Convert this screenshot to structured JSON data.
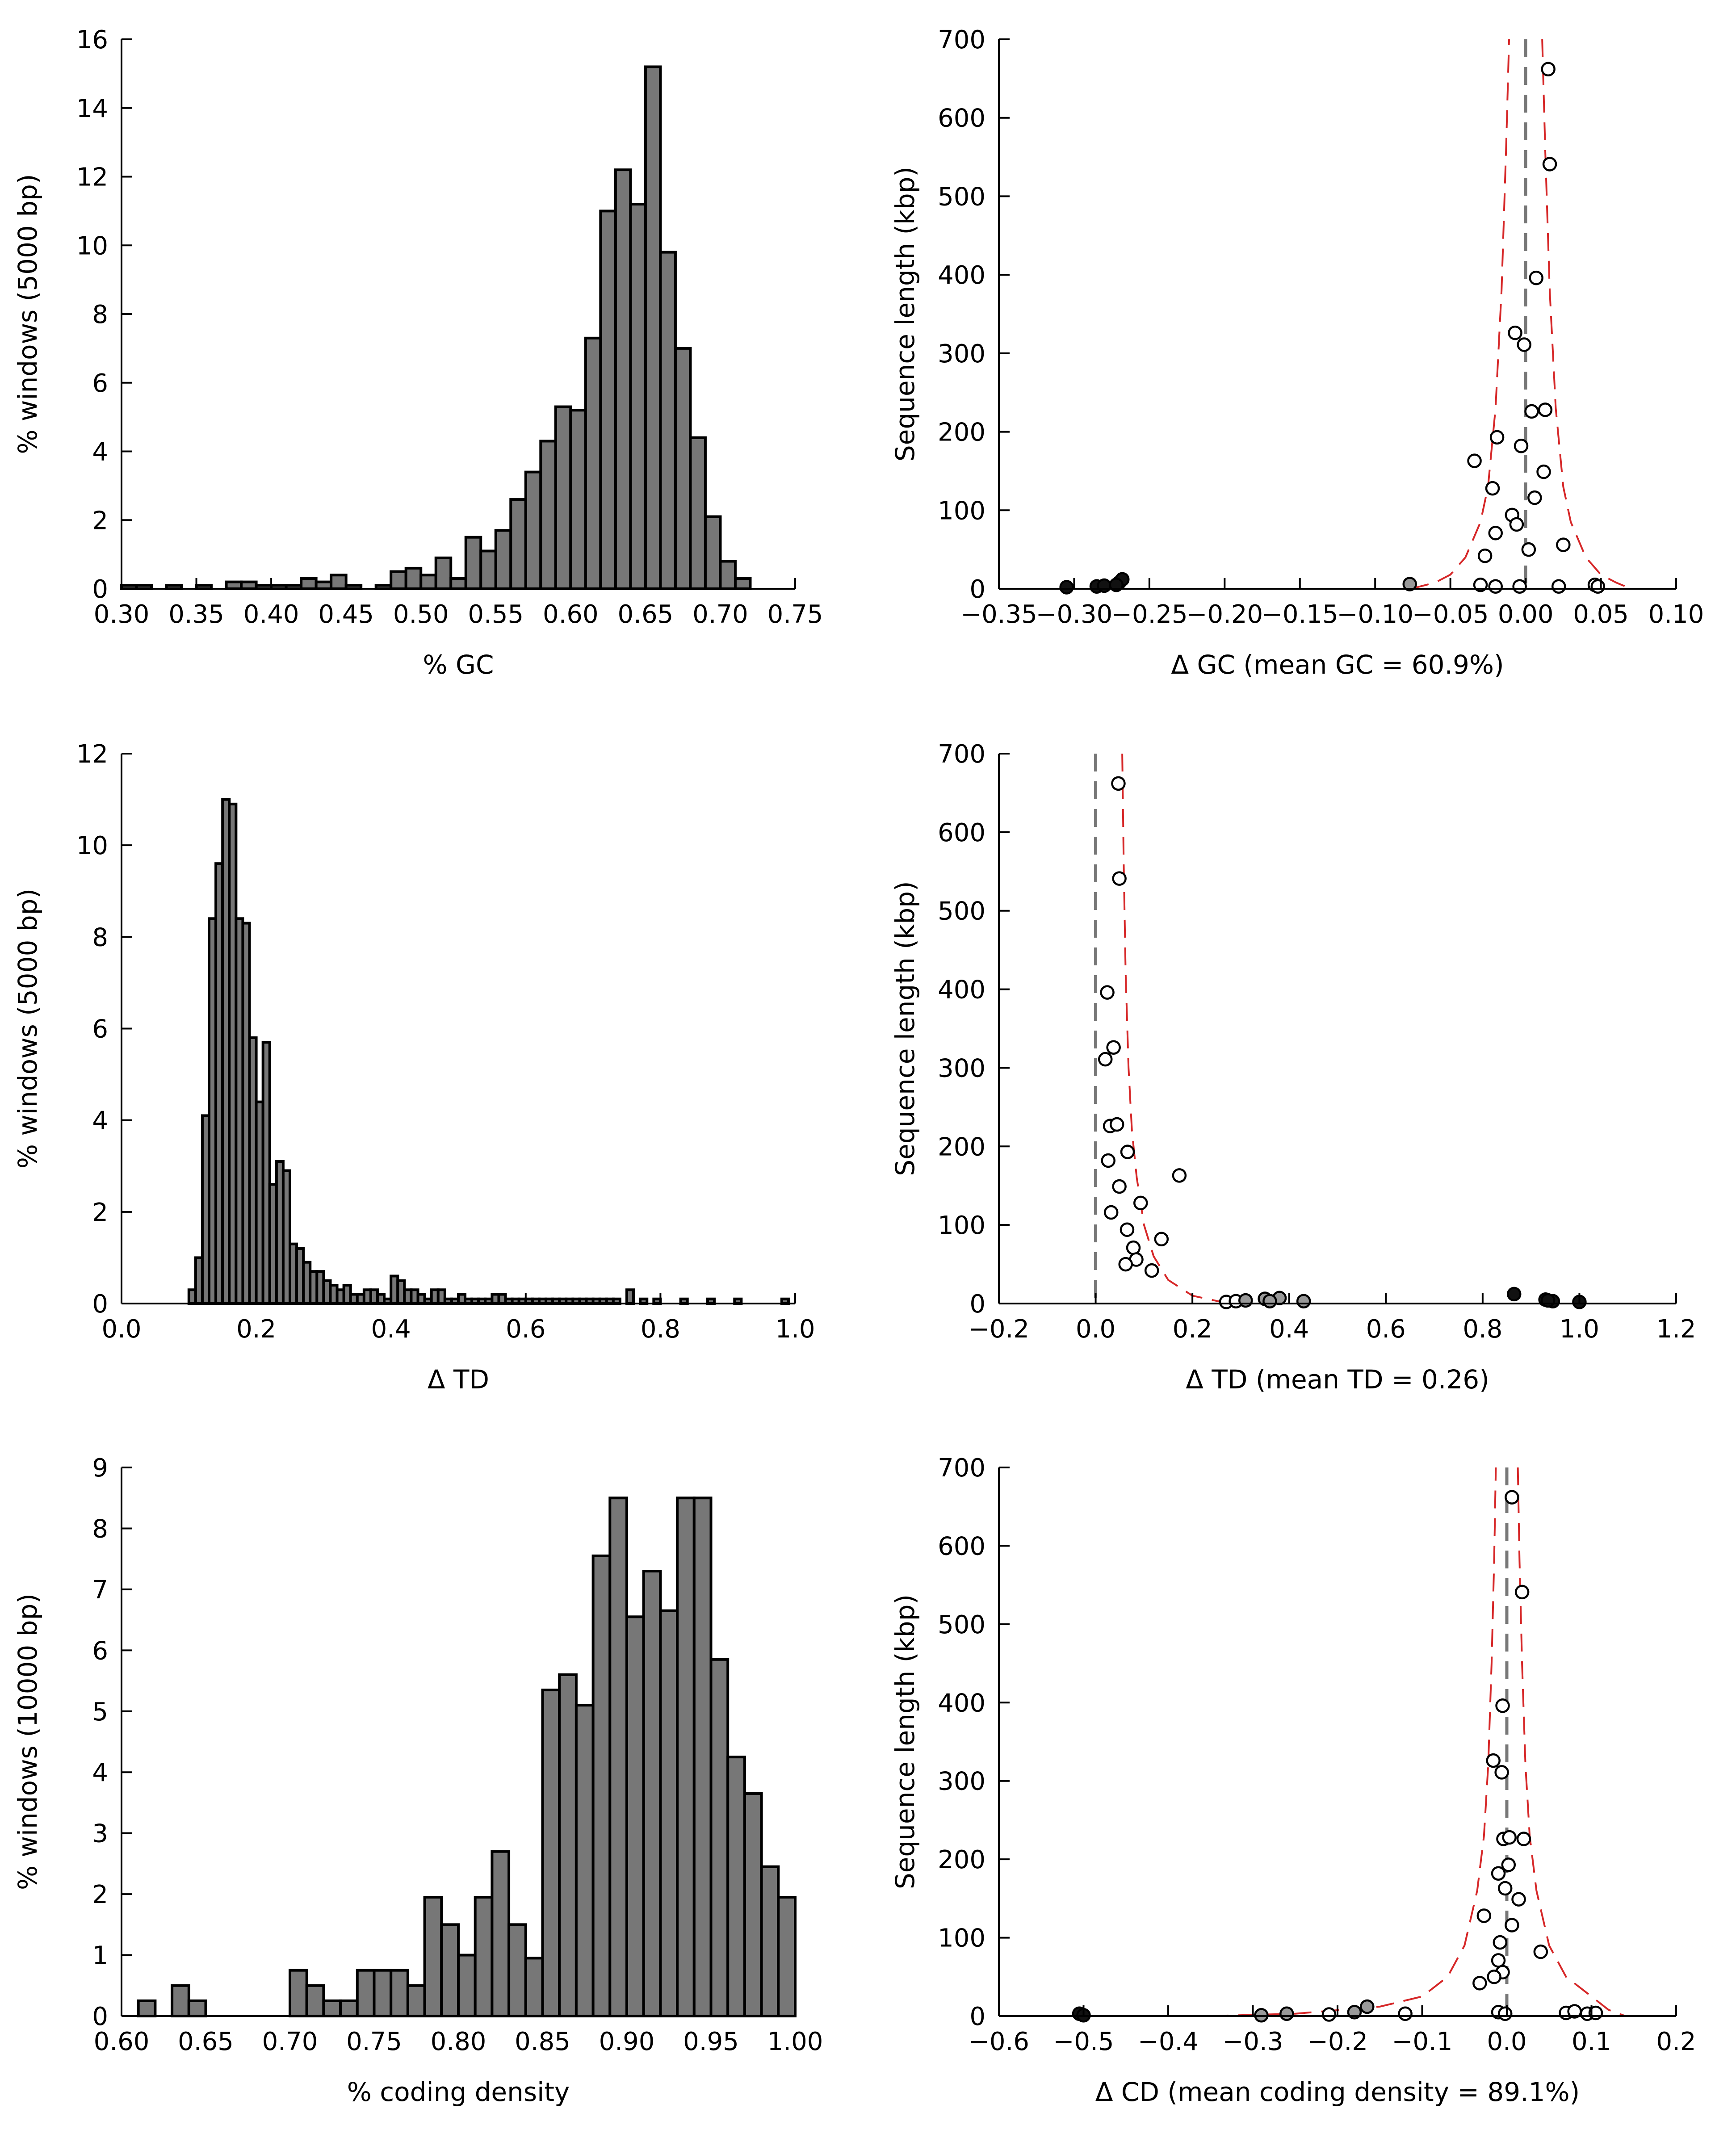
{
  "chart_data": [
    {
      "id": "hist_gc",
      "type": "bar",
      "xlabel": "% GC",
      "ylabel": "% windows (5000 bp)",
      "xlim": [
        0.3,
        0.75
      ],
      "ylim": [
        0,
        16
      ],
      "xticks": [
        "0.30",
        "0.35",
        "0.40",
        "0.45",
        "0.50",
        "0.55",
        "0.60",
        "0.65",
        "0.70",
        "0.75"
      ],
      "yticks": [
        "0",
        "2",
        "4",
        "6",
        "8",
        "10",
        "12",
        "14",
        "16"
      ],
      "bin_start": 0.3,
      "bin_width": 0.01,
      "values": [
        0.1,
        0.1,
        0,
        0.1,
        0,
        0.1,
        0,
        0.2,
        0.2,
        0.1,
        0.1,
        0.1,
        0.3,
        0.2,
        0.4,
        0.1,
        0,
        0.1,
        0.5,
        0.6,
        0.4,
        0.9,
        0.3,
        1.5,
        1.1,
        1.7,
        2.6,
        3.4,
        4.3,
        5.3,
        5.2,
        7.3,
        11.0,
        12.2,
        11.2,
        15.2,
        9.8,
        7.0,
        4.4,
        2.1,
        0.8,
        0.3,
        0,
        0,
        0,
        0
      ],
      "bar_color": "#777777"
    },
    {
      "id": "scatter_gc",
      "type": "scatter",
      "xlabel": "Δ GC (mean GC = 60.9%)",
      "ylabel": "Sequence length (kbp)",
      "xlim": [
        -0.35,
        0.1
      ],
      "ylim": [
        0,
        700
      ],
      "xticks": [
        "−0.35",
        "−0.30",
        "−0.25",
        "−0.20",
        "−0.15",
        "−0.10",
        "−0.05",
        "0.00",
        "0.05",
        "0.10"
      ],
      "yticks": [
        "0",
        "100",
        "200",
        "300",
        "400",
        "500",
        "600",
        "700"
      ],
      "ref_x": 0.0,
      "envelope": [
        {
          "x": -0.076,
          "y": 0
        },
        {
          "x": -0.06,
          "y": 8
        },
        {
          "x": -0.05,
          "y": 18
        },
        {
          "x": -0.04,
          "y": 40
        },
        {
          "x": -0.03,
          "y": 85
        },
        {
          "x": -0.025,
          "y": 130
        },
        {
          "x": -0.02,
          "y": 230
        },
        {
          "x": -0.016,
          "y": 380
        },
        {
          "x": -0.013,
          "y": 560
        },
        {
          "x": -0.011,
          "y": 700
        }
      ],
      "envelope_right": [
        {
          "x": 0.011,
          "y": 700
        },
        {
          "x": 0.013,
          "y": 560
        },
        {
          "x": 0.016,
          "y": 380
        },
        {
          "x": 0.02,
          "y": 230
        },
        {
          "x": 0.025,
          "y": 130
        },
        {
          "x": 0.03,
          "y": 85
        },
        {
          "x": 0.04,
          "y": 40
        },
        {
          "x": 0.05,
          "y": 18
        },
        {
          "x": 0.06,
          "y": 8
        },
        {
          "x": 0.07,
          "y": 0
        }
      ],
      "points_open": [
        {
          "x": 0.015,
          "y": 662
        },
        {
          "x": 0.016,
          "y": 541
        },
        {
          "x": 0.007,
          "y": 396
        },
        {
          "x": -0.007,
          "y": 326
        },
        {
          "x": -0.001,
          "y": 311
        },
        {
          "x": 0.004,
          "y": 226
        },
        {
          "x": 0.013,
          "y": 228
        },
        {
          "x": -0.019,
          "y": 193
        },
        {
          "x": -0.003,
          "y": 182
        },
        {
          "x": -0.034,
          "y": 163
        },
        {
          "x": 0.012,
          "y": 149
        },
        {
          "x": -0.022,
          "y": 128
        },
        {
          "x": 0.006,
          "y": 116
        },
        {
          "x": -0.009,
          "y": 94
        },
        {
          "x": -0.006,
          "y": 82
        },
        {
          "x": -0.02,
          "y": 71
        },
        {
          "x": 0.025,
          "y": 56
        },
        {
          "x": 0.002,
          "y": 50
        },
        {
          "x": -0.027,
          "y": 42
        },
        {
          "x": -0.03,
          "y": 5
        },
        {
          "x": -0.02,
          "y": 3
        },
        {
          "x": -0.004,
          "y": 3
        },
        {
          "x": 0.022,
          "y": 3
        },
        {
          "x": 0.046,
          "y": 5
        },
        {
          "x": 0.048,
          "y": 3
        }
      ],
      "points_gray": [
        {
          "x": -0.077,
          "y": 6
        }
      ],
      "points_filled": [
        {
          "x": -0.305,
          "y": 2
        },
        {
          "x": -0.285,
          "y": 3
        },
        {
          "x": -0.28,
          "y": 4
        },
        {
          "x": -0.27,
          "y": 8
        },
        {
          "x": -0.268,
          "y": 12
        },
        {
          "x": -0.272,
          "y": 5
        }
      ]
    },
    {
      "id": "hist_td",
      "type": "bar",
      "xlabel": "Δ TD",
      "ylabel": "% windows (5000 bp)",
      "xlim": [
        0.0,
        1.0
      ],
      "ylim": [
        0,
        12
      ],
      "xticks": [
        "0.0",
        "0.2",
        "0.4",
        "0.6",
        "0.8",
        "1.0"
      ],
      "yticks": [
        "0",
        "2",
        "4",
        "6",
        "8",
        "10",
        "12"
      ],
      "bin_start": 0.1,
      "bin_width": 0.01,
      "values": [
        0.3,
        1.0,
        4.1,
        8.4,
        9.6,
        11.0,
        10.9,
        8.4,
        8.3,
        5.8,
        4.4,
        5.7,
        2.6,
        3.1,
        2.9,
        1.3,
        1.2,
        0.9,
        0.7,
        0.7,
        0.5,
        0.4,
        0.3,
        0.4,
        0.2,
        0.2,
        0.3,
        0.3,
        0.2,
        0.1,
        0.6,
        0.5,
        0.3,
        0.3,
        0.2,
        0.1,
        0.3,
        0.3,
        0.1,
        0.1,
        0.2,
        0.1,
        0.1,
        0.1,
        0.1,
        0.2,
        0.2,
        0.1,
        0.1,
        0.1,
        0.1,
        0.1,
        0.1,
        0.1,
        0.1,
        0.1,
        0.1,
        0.1,
        0.1,
        0.1,
        0.1,
        0.1,
        0.1,
        0.1,
        0,
        0.3,
        0,
        0.1,
        0,
        0.1,
        0,
        0,
        0,
        0.1,
        0,
        0,
        0,
        0.1,
        0,
        0,
        0,
        0.1,
        0,
        0,
        0,
        0,
        0,
        0,
        0.1
      ],
      "bar_color": "#777777"
    },
    {
      "id": "scatter_td",
      "type": "scatter",
      "xlabel": "Δ TD (mean TD = 0.26)",
      "ylabel": "Sequence length (kbp)",
      "xlim": [
        -0.2,
        1.2
      ],
      "ylim": [
        0,
        700
      ],
      "xticks": [
        "−0.2",
        "0.0",
        "0.2",
        "0.4",
        "0.6",
        "0.8",
        "1.0",
        "1.2"
      ],
      "yticks": [
        "0",
        "100",
        "200",
        "300",
        "400",
        "500",
        "600",
        "700"
      ],
      "ref_x": 0.0,
      "envelope": [
        {
          "x": 0.055,
          "y": 700
        },
        {
          "x": 0.058,
          "y": 560
        },
        {
          "x": 0.062,
          "y": 420
        },
        {
          "x": 0.068,
          "y": 300
        },
        {
          "x": 0.075,
          "y": 220
        },
        {
          "x": 0.085,
          "y": 160
        },
        {
          "x": 0.1,
          "y": 100
        },
        {
          "x": 0.12,
          "y": 60
        },
        {
          "x": 0.15,
          "y": 30
        },
        {
          "x": 0.2,
          "y": 10
        },
        {
          "x": 0.26,
          "y": 2
        },
        {
          "x": 0.3,
          "y": 0
        }
      ],
      "envelope_right": [],
      "points_open": [
        {
          "x": 0.047,
          "y": 662
        },
        {
          "x": 0.049,
          "y": 541
        },
        {
          "x": 0.024,
          "y": 396
        },
        {
          "x": 0.037,
          "y": 326
        },
        {
          "x": 0.02,
          "y": 311
        },
        {
          "x": 0.03,
          "y": 226
        },
        {
          "x": 0.044,
          "y": 228
        },
        {
          "x": 0.066,
          "y": 193
        },
        {
          "x": 0.026,
          "y": 182
        },
        {
          "x": 0.173,
          "y": 163
        },
        {
          "x": 0.049,
          "y": 149
        },
        {
          "x": 0.093,
          "y": 128
        },
        {
          "x": 0.032,
          "y": 116
        },
        {
          "x": 0.065,
          "y": 94
        },
        {
          "x": 0.136,
          "y": 82
        },
        {
          "x": 0.078,
          "y": 71
        },
        {
          "x": 0.084,
          "y": 56
        },
        {
          "x": 0.062,
          "y": 50
        },
        {
          "x": 0.116,
          "y": 42
        },
        {
          "x": 0.27,
          "y": 2
        },
        {
          "x": 0.29,
          "y": 3
        }
      ],
      "points_gray": [
        {
          "x": 0.31,
          "y": 4
        },
        {
          "x": 0.35,
          "y": 6
        },
        {
          "x": 0.38,
          "y": 7
        },
        {
          "x": 0.43,
          "y": 3
        },
        {
          "x": 0.36,
          "y": 3
        }
      ],
      "points_filled": [
        {
          "x": 0.865,
          "y": 12
        },
        {
          "x": 0.93,
          "y": 5
        },
        {
          "x": 0.945,
          "y": 3
        },
        {
          "x": 0.935,
          "y": 4
        },
        {
          "x": 1.0,
          "y": 2
        }
      ]
    },
    {
      "id": "hist_cd",
      "type": "bar",
      "xlabel": "% coding density",
      "ylabel": "% windows (10000 bp)",
      "xlim": [
        0.6,
        1.0
      ],
      "ylim": [
        0,
        9
      ],
      "xticks": [
        "0.60",
        "0.65",
        "0.70",
        "0.75",
        "0.80",
        "0.85",
        "0.90",
        "0.95",
        "1.00"
      ],
      "yticks": [
        "0",
        "1",
        "2",
        "3",
        "4",
        "5",
        "6",
        "7",
        "8",
        "9"
      ],
      "bin_start": 0.61,
      "bin_width": 0.01,
      "values": [
        0.25,
        0,
        0.5,
        0.25,
        0,
        0,
        0,
        0,
        0,
        0.75,
        0.5,
        0.25,
        0.25,
        0.75,
        0.75,
        0.75,
        0.5,
        1.95,
        1.5,
        1.0,
        1.95,
        2.7,
        1.5,
        0.95,
        5.35,
        5.6,
        5.1,
        7.55,
        8.5,
        6.55,
        7.3,
        6.65,
        8.5,
        8.5,
        5.85,
        4.25,
        3.65,
        2.45,
        1.95
      ],
      "bar_color": "#777777"
    },
    {
      "id": "scatter_cd",
      "type": "scatter",
      "xlabel": "Δ CD (mean coding density = 89.1%)",
      "ylabel": "Sequence length (kbp)",
      "xlim": [
        -0.6,
        0.2
      ],
      "ylim": [
        0,
        700
      ],
      "xticks": [
        "−0.6",
        "−0.5",
        "−0.4",
        "−0.3",
        "−0.2",
        "−0.1",
        "0.0",
        "0.1",
        "0.2"
      ],
      "yticks": [
        "0",
        "100",
        "200",
        "300",
        "400",
        "500",
        "600",
        "700"
      ],
      "ref_x": 0.0,
      "envelope": [
        {
          "x": -0.35,
          "y": 0
        },
        {
          "x": -0.25,
          "y": 3
        },
        {
          "x": -0.15,
          "y": 12
        },
        {
          "x": -0.1,
          "y": 25
        },
        {
          "x": -0.07,
          "y": 50
        },
        {
          "x": -0.05,
          "y": 90
        },
        {
          "x": -0.035,
          "y": 160
        },
        {
          "x": -0.027,
          "y": 230
        },
        {
          "x": -0.022,
          "y": 320
        },
        {
          "x": -0.018,
          "y": 450
        },
        {
          "x": -0.015,
          "y": 580
        },
        {
          "x": -0.013,
          "y": 700
        }
      ],
      "envelope_right": [
        {
          "x": 0.013,
          "y": 700
        },
        {
          "x": 0.015,
          "y": 580
        },
        {
          "x": 0.018,
          "y": 450
        },
        {
          "x": 0.022,
          "y": 320
        },
        {
          "x": 0.027,
          "y": 230
        },
        {
          "x": 0.035,
          "y": 160
        },
        {
          "x": 0.05,
          "y": 90
        },
        {
          "x": 0.07,
          "y": 50
        },
        {
          "x": 0.1,
          "y": 25
        },
        {
          "x": 0.12,
          "y": 8
        },
        {
          "x": 0.14,
          "y": 0
        }
      ],
      "points_open": [
        {
          "x": 0.006,
          "y": 662
        },
        {
          "x": 0.018,
          "y": 541
        },
        {
          "x": -0.005,
          "y": 396
        },
        {
          "x": -0.016,
          "y": 326
        },
        {
          "x": -0.006,
          "y": 311
        },
        {
          "x": -0.004,
          "y": 226
        },
        {
          "x": 0.003,
          "y": 228
        },
        {
          "x": 0.02,
          "y": 226
        },
        {
          "x": 0.002,
          "y": 193
        },
        {
          "x": -0.01,
          "y": 182
        },
        {
          "x": -0.002,
          "y": 163
        },
        {
          "x": 0.014,
          "y": 149
        },
        {
          "x": -0.027,
          "y": 128
        },
        {
          "x": 0.006,
          "y": 116
        },
        {
          "x": -0.008,
          "y": 94
        },
        {
          "x": 0.04,
          "y": 82
        },
        {
          "x": -0.01,
          "y": 71
        },
        {
          "x": -0.005,
          "y": 56
        },
        {
          "x": -0.015,
          "y": 50
        },
        {
          "x": -0.032,
          "y": 42
        },
        {
          "x": -0.01,
          "y": 5
        },
        {
          "x": -0.002,
          "y": 3
        },
        {
          "x": 0.07,
          "y": 4
        },
        {
          "x": 0.08,
          "y": 6
        },
        {
          "x": 0.095,
          "y": 3
        },
        {
          "x": 0.105,
          "y": 4
        },
        {
          "x": -0.12,
          "y": 3
        },
        {
          "x": -0.21,
          "y": 2
        }
      ],
      "points_gray": [
        {
          "x": -0.26,
          "y": 3
        },
        {
          "x": -0.18,
          "y": 5
        },
        {
          "x": -0.165,
          "y": 12
        },
        {
          "x": -0.29,
          "y": 1
        }
      ],
      "points_filled": [
        {
          "x": -0.505,
          "y": 3
        },
        {
          "x": -0.5,
          "y": 1
        }
      ]
    }
  ]
}
